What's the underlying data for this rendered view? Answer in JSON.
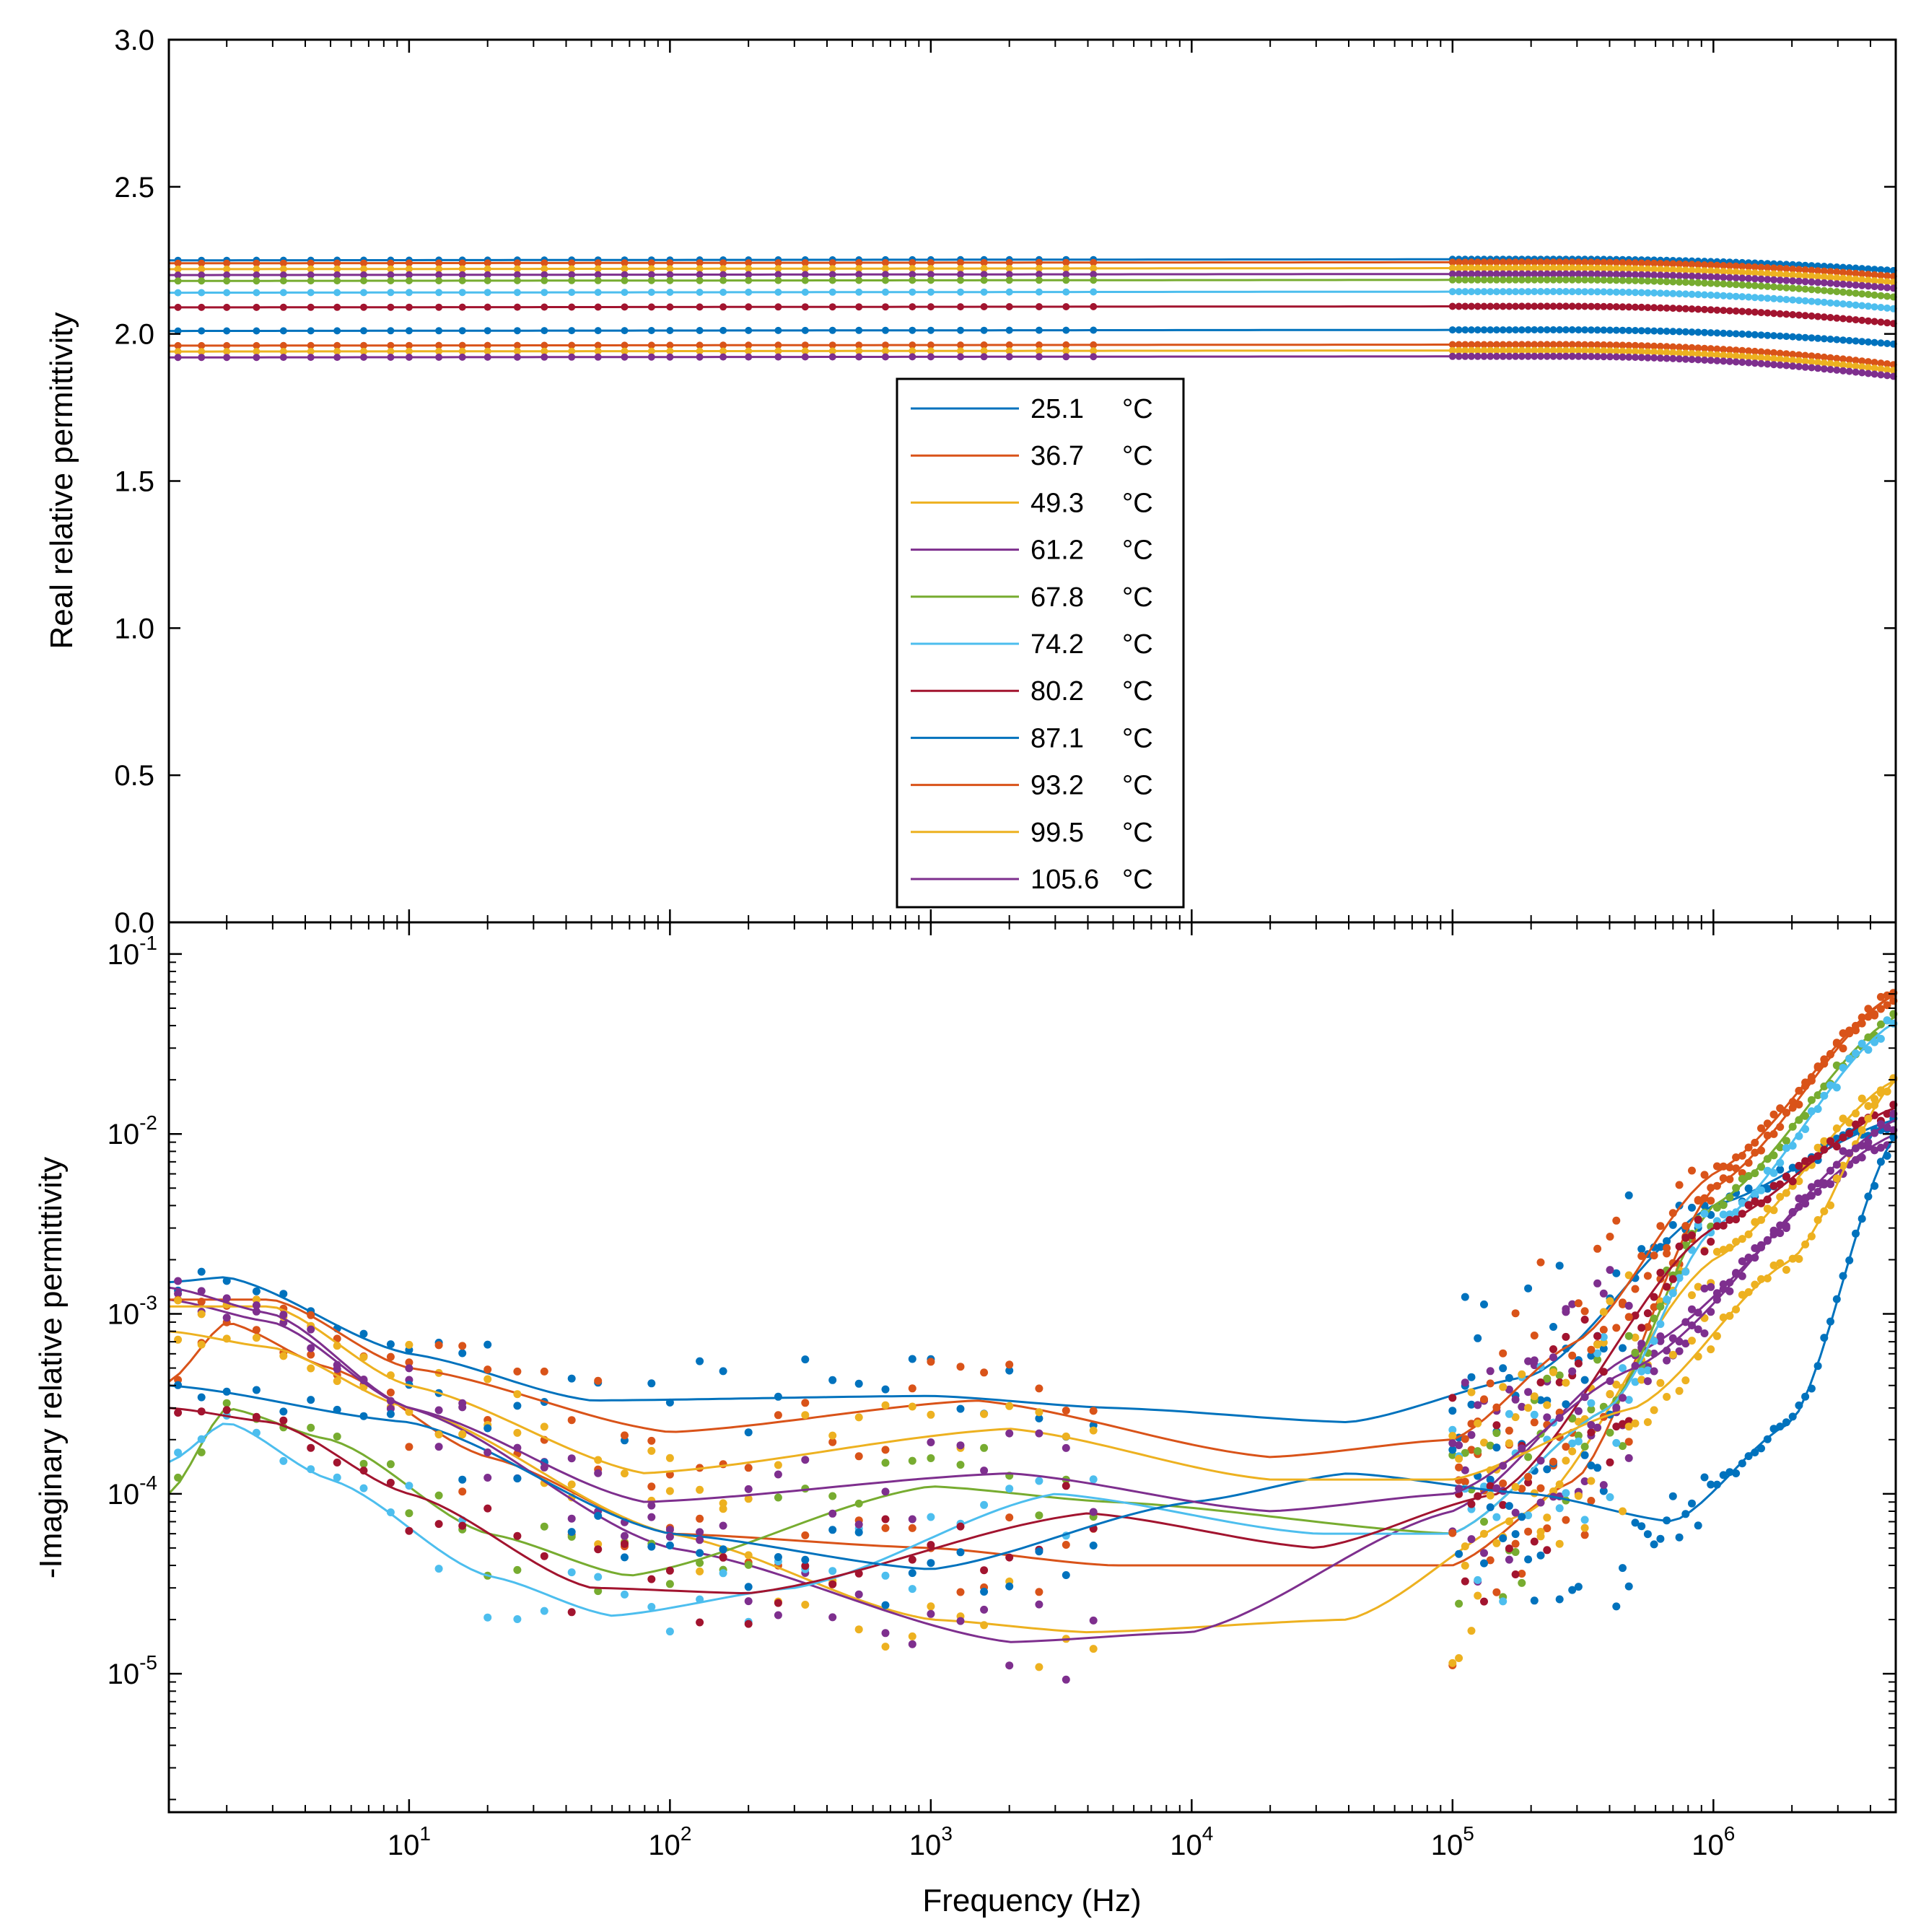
{
  "chart_data": [
    {
      "id": "real",
      "type": "scatter",
      "ylabel": "Real relative permittivity",
      "xlabel": "",
      "xscale": "log",
      "xlim": [
        1.2,
        5000000
      ],
      "ylim": [
        0,
        3.0
      ],
      "yticks": [
        "0.0",
        "0.5",
        "1.0",
        "1.5",
        "2.0",
        "2.5",
        "3.0"
      ],
      "ytick_values": [
        0,
        0.5,
        1.0,
        1.5,
        2.0,
        2.5,
        3.0
      ],
      "legend_position": "center",
      "series": [
        {
          "name": "25.1",
          "unit": "°C",
          "color": "#0072BD",
          "base": 2.25,
          "drop": 0.04
        },
        {
          "name": "36.7",
          "unit": "°C",
          "color": "#D95319",
          "base": 2.24,
          "drop": 0.05
        },
        {
          "name": "49.3",
          "unit": "°C",
          "color": "#EDB120",
          "base": 2.22,
          "drop": 0.05
        },
        {
          "name": "61.2",
          "unit": "°C",
          "color": "#7E2F8E",
          "base": 2.2,
          "drop": 0.05
        },
        {
          "name": "67.8",
          "unit": "°C",
          "color": "#77AC30",
          "base": 2.18,
          "drop": 0.06
        },
        {
          "name": "74.2",
          "unit": "°C",
          "color": "#4DBEEE",
          "base": 2.14,
          "drop": 0.06
        },
        {
          "name": "80.2",
          "unit": "°C",
          "color": "#A2142F",
          "base": 2.09,
          "drop": 0.06
        },
        {
          "name": "87.1",
          "unit": "°C",
          "color": "#0072BD",
          "base": 2.01,
          "drop": 0.05
        },
        {
          "name": "93.2",
          "unit": "°C",
          "color": "#D95319",
          "base": 1.96,
          "drop": 0.07
        },
        {
          "name": "99.5",
          "unit": "°C",
          "color": "#EDB120",
          "base": 1.94,
          "drop": 0.07
        },
        {
          "name": "105.6",
          "unit": "°C",
          "color": "#7E2F8E",
          "base": 1.92,
          "drop": 0.07
        }
      ]
    },
    {
      "id": "imag",
      "type": "scatter",
      "ylabel": "-Imaginary relative permittivity",
      "xlabel": "Frequency (Hz)",
      "xscale": "log",
      "yscale": "log",
      "xlim": [
        1.2,
        5000000
      ],
      "ylim": [
        1.7e-06,
        0.15
      ],
      "xticks": [
        {
          "base": "10",
          "exp": "1",
          "value": 10
        },
        {
          "base": "10",
          "exp": "2",
          "value": 100
        },
        {
          "base": "10",
          "exp": "3",
          "value": 1000
        },
        {
          "base": "10",
          "exp": "4",
          "value": 10000
        },
        {
          "base": "10",
          "exp": "5",
          "value": 100000
        },
        {
          "base": "10",
          "exp": "6",
          "value": 1000000
        }
      ],
      "yticks": [
        {
          "base": "10",
          "exp": "-5",
          "value": 1e-05
        },
        {
          "base": "10",
          "exp": "-4",
          "value": 0.0001
        },
        {
          "base": "10",
          "exp": "-3",
          "value": 0.001
        },
        {
          "base": "10",
          "exp": "-2",
          "value": 0.01
        },
        {
          "base": "10",
          "exp": "-1",
          "value": 0.1
        }
      ],
      "series": [
        {
          "name": "25.1",
          "color": "#0072BD",
          "curve": [
            [
              1.2,
              0.0015
            ],
            [
              2,
              0.0016
            ],
            [
              10,
              0.0006
            ],
            [
              50,
              0.00033
            ],
            [
              1000,
              0.00035
            ],
            [
              5000,
              0.0003
            ],
            [
              40000,
              0.00025
            ],
            [
              200000,
              0.00045
            ],
            [
              1000000,
              0.004
            ],
            [
              5000000,
              0.012
            ]
          ]
        },
        {
          "name": "36.7",
          "color": "#D95319",
          "curve": [
            [
              1.2,
              0.00042
            ],
            [
              2,
              0.0009
            ],
            [
              5,
              0.0005
            ],
            [
              20,
              0.00016
            ],
            [
              100,
              6e-05
            ],
            [
              1000,
              5e-05
            ],
            [
              5000,
              4e-05
            ],
            [
              100000,
              4e-05
            ],
            [
              300000,
              0.00012
            ],
            [
              1000000,
              0.005
            ],
            [
              5000000,
              0.06
            ]
          ]
        },
        {
          "name": "49.3",
          "color": "#EDB120",
          "curve": [
            [
              1.2,
              0.0008
            ],
            [
              3,
              0.00065
            ],
            [
              10,
              0.0003
            ],
            [
              100,
              6e-05
            ],
            [
              1000,
              2e-05
            ],
            [
              4000,
              1.7e-05
            ],
            [
              40000,
              2e-05
            ],
            [
              200000,
              8e-05
            ],
            [
              1000000,
              0.002
            ],
            [
              5000000,
              0.02
            ]
          ]
        },
        {
          "name": "61.2",
          "color": "#7E2F8E",
          "curve": [
            [
              1.2,
              0.0012
            ],
            [
              3,
              0.0009
            ],
            [
              10,
              0.0003
            ],
            [
              100,
              5e-05
            ],
            [
              2000,
              1.5e-05
            ],
            [
              10000,
              1.7e-05
            ],
            [
              100000,
              8e-05
            ],
            [
              500000,
              0.0006
            ],
            [
              5000000,
              0.01
            ]
          ]
        },
        {
          "name": "67.8",
          "color": "#77AC30",
          "curve": [
            [
              1.2,
              0.0001
            ],
            [
              2,
              0.0003
            ],
            [
              5,
              0.0002
            ],
            [
              20,
              6e-05
            ],
            [
              70,
              3.5e-05
            ],
            [
              1000,
              0.00011
            ],
            [
              5000,
              9e-05
            ],
            [
              100000,
              6e-05
            ],
            [
              400000,
              0.0003
            ],
            [
              1000000,
              0.004
            ],
            [
              5000000,
              0.045
            ]
          ]
        },
        {
          "name": "74.2",
          "color": "#4DBEEE",
          "curve": [
            [
              1.2,
              0.00015
            ],
            [
              2,
              0.00025
            ],
            [
              5,
              0.00012
            ],
            [
              20,
              3.5e-05
            ],
            [
              60,
              2.1e-05
            ],
            [
              300,
              3e-05
            ],
            [
              3000,
              0.0001
            ],
            [
              30000,
              6e-05
            ],
            [
              100000,
              6e-05
            ],
            [
              400000,
              0.0003
            ],
            [
              1000000,
              0.003
            ],
            [
              5000000,
              0.042
            ]
          ]
        },
        {
          "name": "80.2",
          "color": "#A2142F",
          "curve": [
            [
              1.2,
              0.0003
            ],
            [
              3,
              0.00025
            ],
            [
              10,
              0.0001
            ],
            [
              50,
              3e-05
            ],
            [
              200,
              2.8e-05
            ],
            [
              4000,
              7.8e-05
            ],
            [
              30000,
              5e-05
            ],
            [
              150000,
              0.0001
            ],
            [
              1000000,
              0.003
            ],
            [
              5000000,
              0.014
            ]
          ]
        },
        {
          "name": "87.1",
          "color": "#0072BD",
          "curve": [
            [
              1.2,
              0.0004
            ],
            [
              10,
              0.00025
            ],
            [
              100,
              6e-05
            ],
            [
              1000,
              3.8e-05
            ],
            [
              10000,
              9e-05
            ],
            [
              40000,
              0.00013
            ],
            [
              200000,
              0.0001
            ],
            [
              700000,
              7e-05
            ],
            [
              2000000,
              0.00025
            ],
            [
              5000000,
              0.01
            ]
          ]
        },
        {
          "name": "93.2",
          "color": "#D95319",
          "curve": [
            [
              1.2,
              0.0012
            ],
            [
              3,
              0.0012
            ],
            [
              10,
              0.0005
            ],
            [
              100,
              0.00022
            ],
            [
              1500,
              0.00033
            ],
            [
              20000,
              0.00016
            ],
            [
              100000,
              0.0002
            ],
            [
              300000,
              0.0007
            ],
            [
              1000000,
              0.006
            ],
            [
              5000000,
              0.06
            ]
          ]
        },
        {
          "name": "99.5",
          "color": "#EDB120",
          "curve": [
            [
              1.2,
              0.0011
            ],
            [
              3,
              0.0011
            ],
            [
              10,
              0.0004
            ],
            [
              80,
              0.00013
            ],
            [
              2000,
              0.00023
            ],
            [
              20000,
              0.00012
            ],
            [
              100000,
              0.00012
            ],
            [
              500000,
              0.0003
            ],
            [
              2000000,
              0.002
            ],
            [
              5000000,
              0.02
            ]
          ]
        },
        {
          "name": "105.6",
          "color": "#7E2F8E",
          "curve": [
            [
              1.2,
              0.0014
            ],
            [
              3,
              0.001
            ],
            [
              10,
              0.0003
            ],
            [
              80,
              9e-05
            ],
            [
              2000,
              0.00013
            ],
            [
              20000,
              8e-05
            ],
            [
              100000,
              0.0001
            ],
            [
              500000,
              0.0005
            ],
            [
              5000000,
              0.012
            ]
          ]
        }
      ]
    }
  ]
}
